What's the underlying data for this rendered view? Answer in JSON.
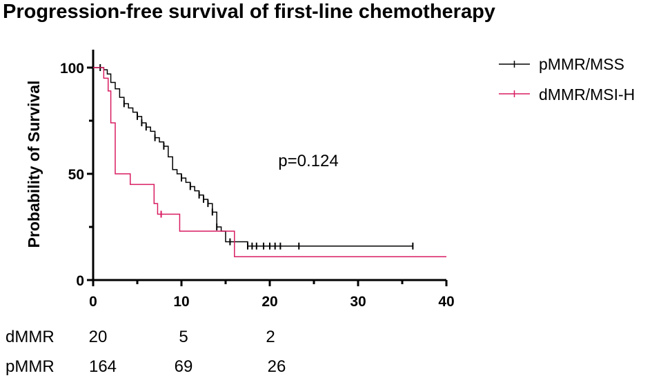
{
  "chart_data": {
    "type": "line",
    "title": "Progression-free survival of first-line chemotherapy",
    "xlabel": "",
    "ylabel": "Probability of Survival",
    "xlim": [
      0,
      40
    ],
    "ylim": [
      0,
      100
    ],
    "xticks": [
      "0",
      "10",
      "20",
      "30",
      "40"
    ],
    "yticks": [
      "0",
      "50",
      "100"
    ],
    "annotation": "p=0.124",
    "legend_position": "top-right",
    "series": [
      {
        "name": "pMMR/MSS",
        "color": "#000000",
        "x": [
          0,
          1.2,
          1.6,
          2.0,
          2.5,
          3.0,
          3.5,
          4.0,
          4.5,
          5.0,
          5.5,
          6.0,
          6.5,
          7.0,
          7.5,
          8.0,
          8.5,
          9.0,
          9.5,
          10.0,
          10.5,
          11.0,
          11.5,
          12.0,
          12.5,
          13.0,
          13.5,
          14.0,
          14.5,
          15.0,
          16.0,
          17.5,
          36.2
        ],
        "y": [
          100,
          99,
          97,
          93,
          90,
          86,
          83,
          81,
          79,
          77,
          74,
          72,
          70,
          67,
          65,
          63,
          58,
          52,
          50,
          48,
          46,
          44,
          42,
          40,
          38,
          36,
          32,
          25,
          23,
          18,
          18,
          16,
          16
        ],
        "censored": [
          [
            0.8,
            100
          ],
          [
            3.5,
            83
          ],
          [
            5.0,
            77
          ],
          [
            5.5,
            74
          ],
          [
            6.0,
            72
          ],
          [
            7.0,
            67
          ],
          [
            8.0,
            63
          ],
          [
            10.0,
            48
          ],
          [
            11.0,
            44
          ],
          [
            12.0,
            40
          ],
          [
            12.5,
            38
          ],
          [
            13.0,
            36
          ],
          [
            13.5,
            32
          ],
          [
            14.0,
            25
          ],
          [
            15.5,
            18
          ],
          [
            17.5,
            16
          ],
          [
            18.0,
            16
          ],
          [
            18.5,
            16
          ],
          [
            19.3,
            16
          ],
          [
            20.0,
            16
          ],
          [
            20.6,
            16
          ],
          [
            21.2,
            16
          ],
          [
            23.3,
            16
          ],
          [
            36.2,
            16
          ]
        ]
      },
      {
        "name": "dMMR/MSI-H",
        "color": "#d81b60",
        "x": [
          0,
          1.2,
          1.7,
          2.0,
          2.5,
          4.2,
          6.9,
          7.3,
          9.8,
          16.0,
          40.0
        ],
        "y": [
          100,
          95,
          89,
          74,
          50,
          45,
          36,
          31,
          23,
          11,
          11
        ],
        "censored": [
          [
            7.7,
            31
          ]
        ]
      }
    ]
  },
  "risk_table": [
    {
      "label": "dMMR",
      "values": [
        "20",
        "5",
        "2"
      ]
    },
    {
      "label": "pMMR",
      "values": [
        "164",
        "69",
        "26"
      ]
    }
  ]
}
